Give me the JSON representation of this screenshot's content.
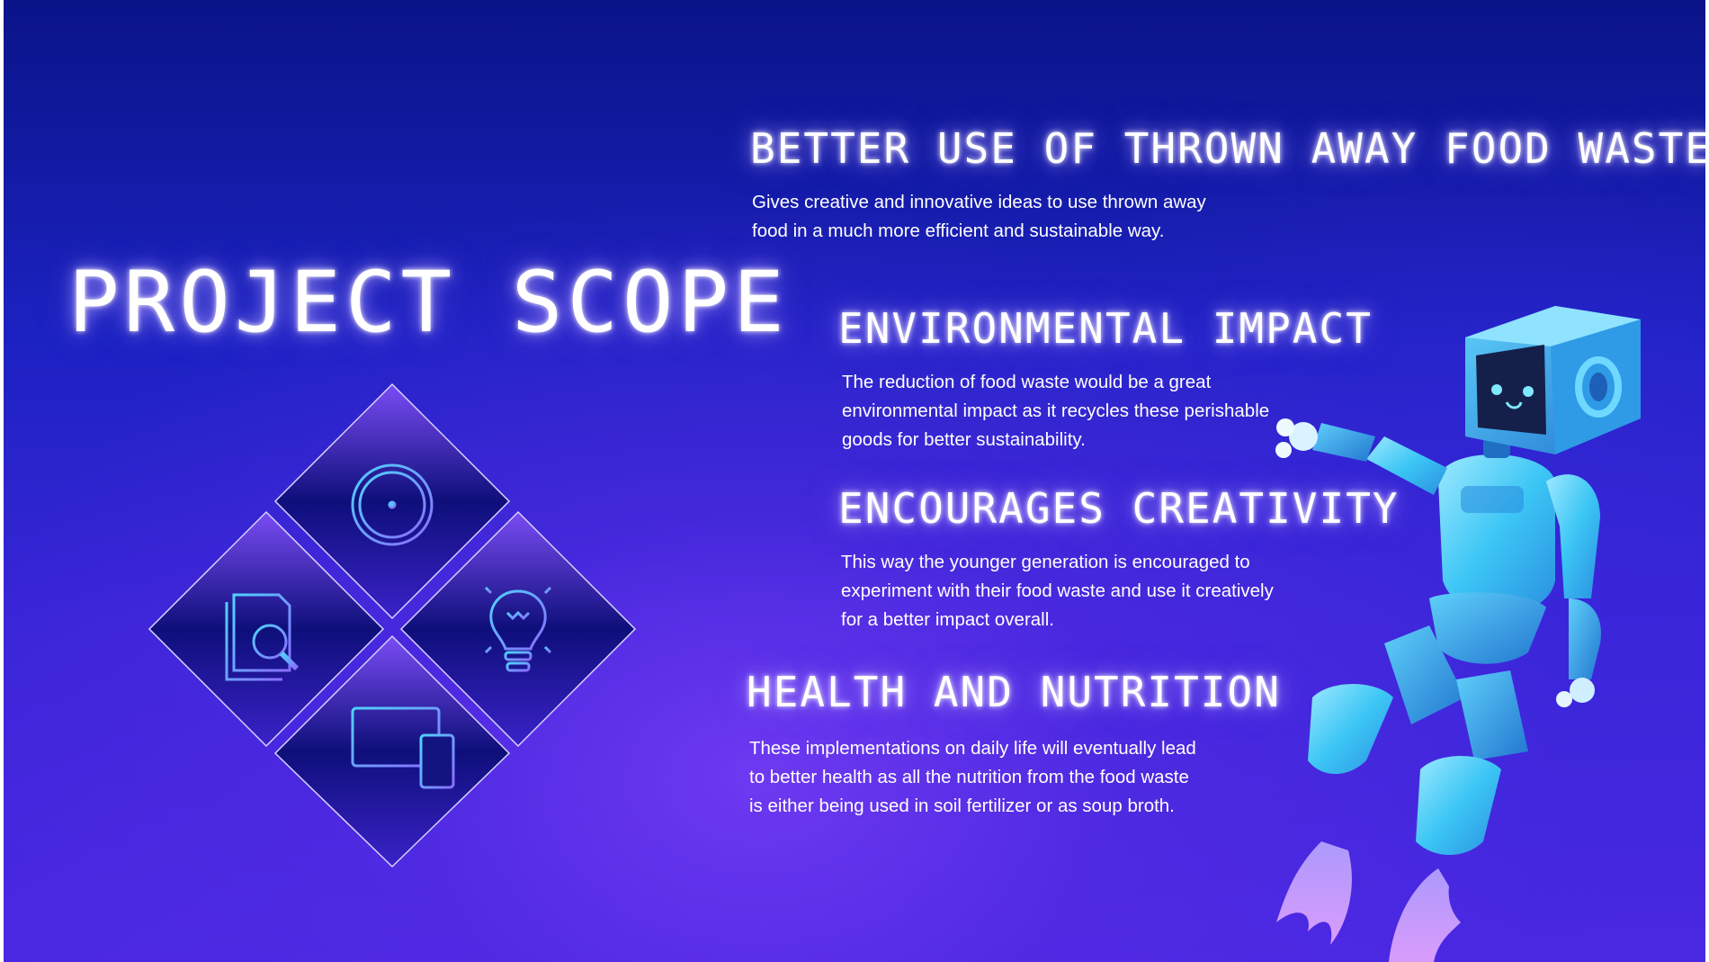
{
  "slide": {
    "title": "PROJECT SCOPE",
    "sections": [
      {
        "heading": "BETTER USE OF THROWN AWAY FOOD WASTE",
        "lines": [
          "Gives creative and innovative ideas to use thrown away",
          "food in a much more efficient and sustainable way."
        ]
      },
      {
        "heading": "ENVIRONMENTAL IMPACT",
        "lines": [
          "The reduction of food waste would be a great",
          "environmental impact as it recycles these perishable",
          "goods for better sustainability."
        ]
      },
      {
        "heading": "ENCOURAGES CREATIVITY",
        "lines": [
          "This way the younger generation is encouraged to",
          "experiment with their food waste and use it creatively",
          "for a better impact overall."
        ]
      },
      {
        "heading": "HEALTH AND NUTRITION",
        "lines": [
          "These implementations on daily life will eventually lead",
          "to better health as all the nutrition from the food waste",
          "is either being used in soil fertilizer or as soup broth."
        ]
      }
    ],
    "icons": [
      "clock-icon",
      "document-search-icon",
      "lightbulb-icon",
      "devices-icon",
      "robot-illustration"
    ],
    "colors": {
      "background_top": "#0a1488",
      "background_bottom": "#4a28e2",
      "glow": "#b9a8ff",
      "icon_cyan": "#4fd3ff",
      "icon_violet": "#8a6cff"
    }
  }
}
